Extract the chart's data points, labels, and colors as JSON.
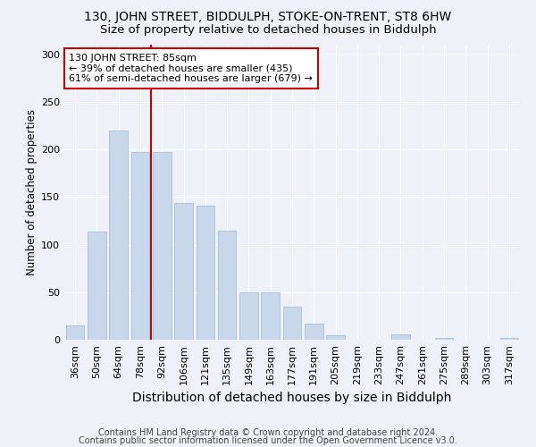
{
  "title1": "130, JOHN STREET, BIDDULPH, STOKE-ON-TRENT, ST8 6HW",
  "title2": "Size of property relative to detached houses in Biddulph",
  "xlabel": "Distribution of detached houses by size in Biddulph",
  "ylabel": "Number of detached properties",
  "categories": [
    "36sqm",
    "50sqm",
    "64sqm",
    "78sqm",
    "92sqm",
    "106sqm",
    "121sqm",
    "135sqm",
    "149sqm",
    "163sqm",
    "177sqm",
    "191sqm",
    "205sqm",
    "219sqm",
    "233sqm",
    "247sqm",
    "261sqm",
    "275sqm",
    "289sqm",
    "303sqm",
    "317sqm"
  ],
  "values": [
    15,
    114,
    220,
    197,
    197,
    144,
    141,
    115,
    50,
    50,
    35,
    17,
    5,
    0,
    0,
    6,
    0,
    2,
    0,
    0,
    2
  ],
  "bar_color": "#c8d8ea",
  "bar_edge_color": "#a8c0d8",
  "vline_x": 3.5,
  "vline_color": "#cc0000",
  "annotation_line1": "130 JOHN STREET: 85sqm",
  "annotation_line2": "← 39% of detached houses are smaller (435)",
  "annotation_line3": "61% of semi-detached houses are larger (679) →",
  "annotation_box_color": "#ffffff",
  "annotation_box_edge": "#cc0000",
  "ylim": [
    0,
    310
  ],
  "yticks": [
    0,
    50,
    100,
    150,
    200,
    250,
    300
  ],
  "footer1": "Contains HM Land Registry data © Crown copyright and database right 2024.",
  "footer2": "Contains public sector information licensed under the Open Government Licence v3.0.",
  "bg_color": "#eef2f8",
  "plot_bg_color": "#eef2f8",
  "grid_color": "#ffffff",
  "title1_fontsize": 10,
  "title2_fontsize": 9.5,
  "xlabel_fontsize": 10,
  "ylabel_fontsize": 8.5,
  "tick_fontsize": 8,
  "footer_fontsize": 7,
  "ann_fontsize": 8
}
